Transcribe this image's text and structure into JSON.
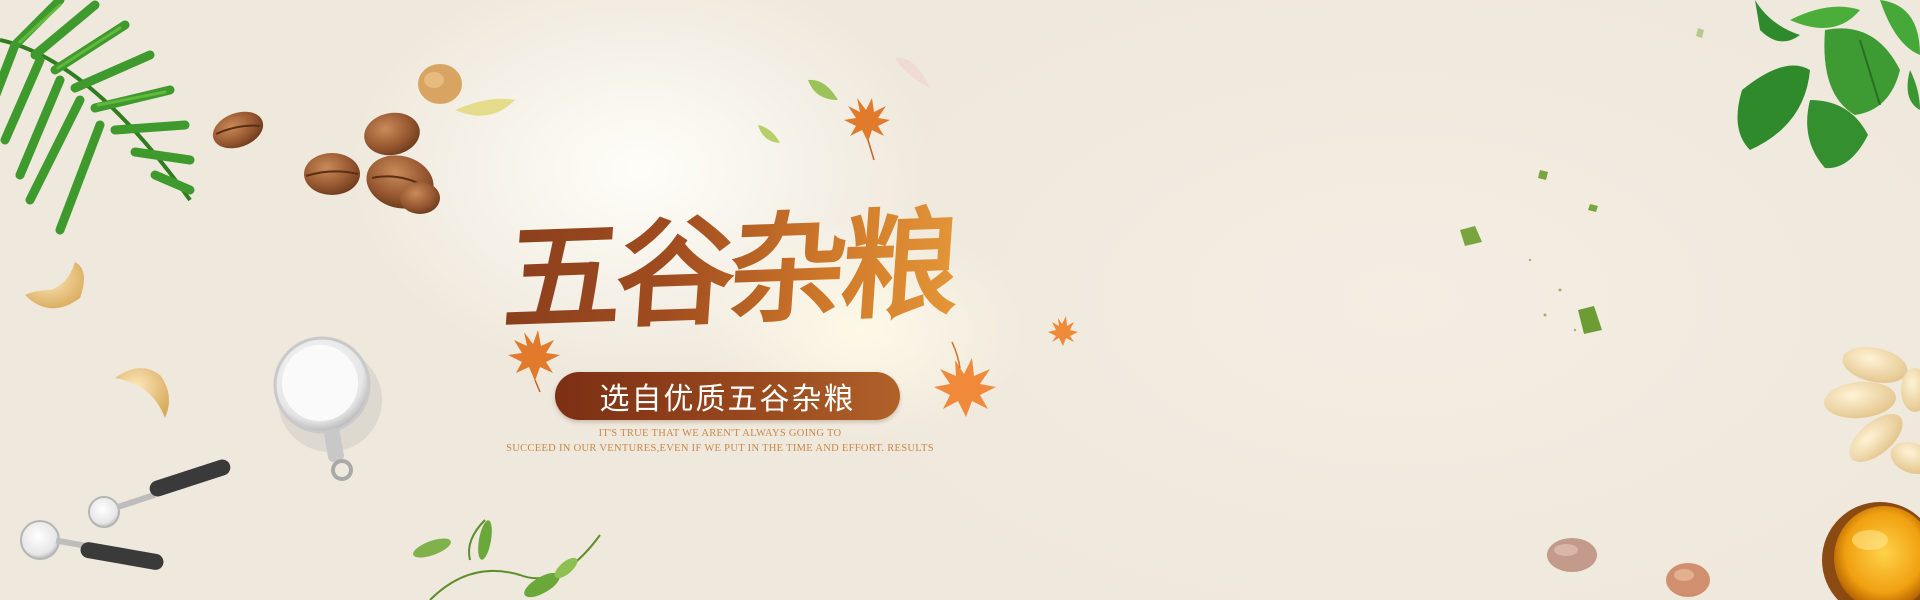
{
  "banner": {
    "title": "五谷杂粮",
    "subtitle": "选自优质五谷杂粮",
    "tagline_line1": "IT'S TRUE THAT WE AREN'T ALWAYS GOING TO",
    "tagline_line2": "SUCCEED IN OUR VENTURES,EVEN IF WE PUT IN THE TIME AND EFFORT. RESULTS"
  },
  "decorations": {
    "icons": [
      "palm-leaf-icon",
      "coffee-bean-icon",
      "cashew-icon",
      "measuring-cup-icon",
      "measuring-spoon-icon",
      "maple-leaf-icon",
      "green-sprout-icon",
      "green-leaves-icon",
      "pine-nut-icon",
      "honey-jar-icon"
    ]
  },
  "colors": {
    "background": "#f0e9de",
    "title_dark": "#8a3f1c",
    "title_light": "#e69a3a",
    "pill": "#8a3b18",
    "tagline": "#c8884a",
    "leaf_green": "#3f9a2e",
    "maple_orange": "#e27a2c"
  }
}
